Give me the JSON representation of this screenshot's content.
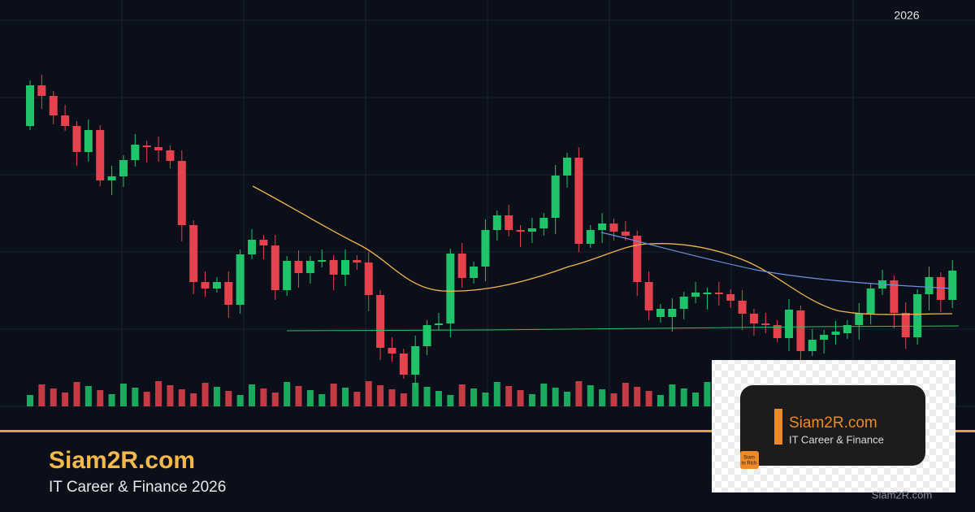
{
  "header": {
    "year": "2026"
  },
  "brand": {
    "name": "Siam2R.com",
    "tagline": "IT Career & Finance 2026"
  },
  "logo": {
    "name": "Siam2R.com",
    "tagline": "IT Career & Finance",
    "badge": [
      "Siam",
      "to Rich"
    ]
  },
  "watermark": "Siam2R.com"
}
